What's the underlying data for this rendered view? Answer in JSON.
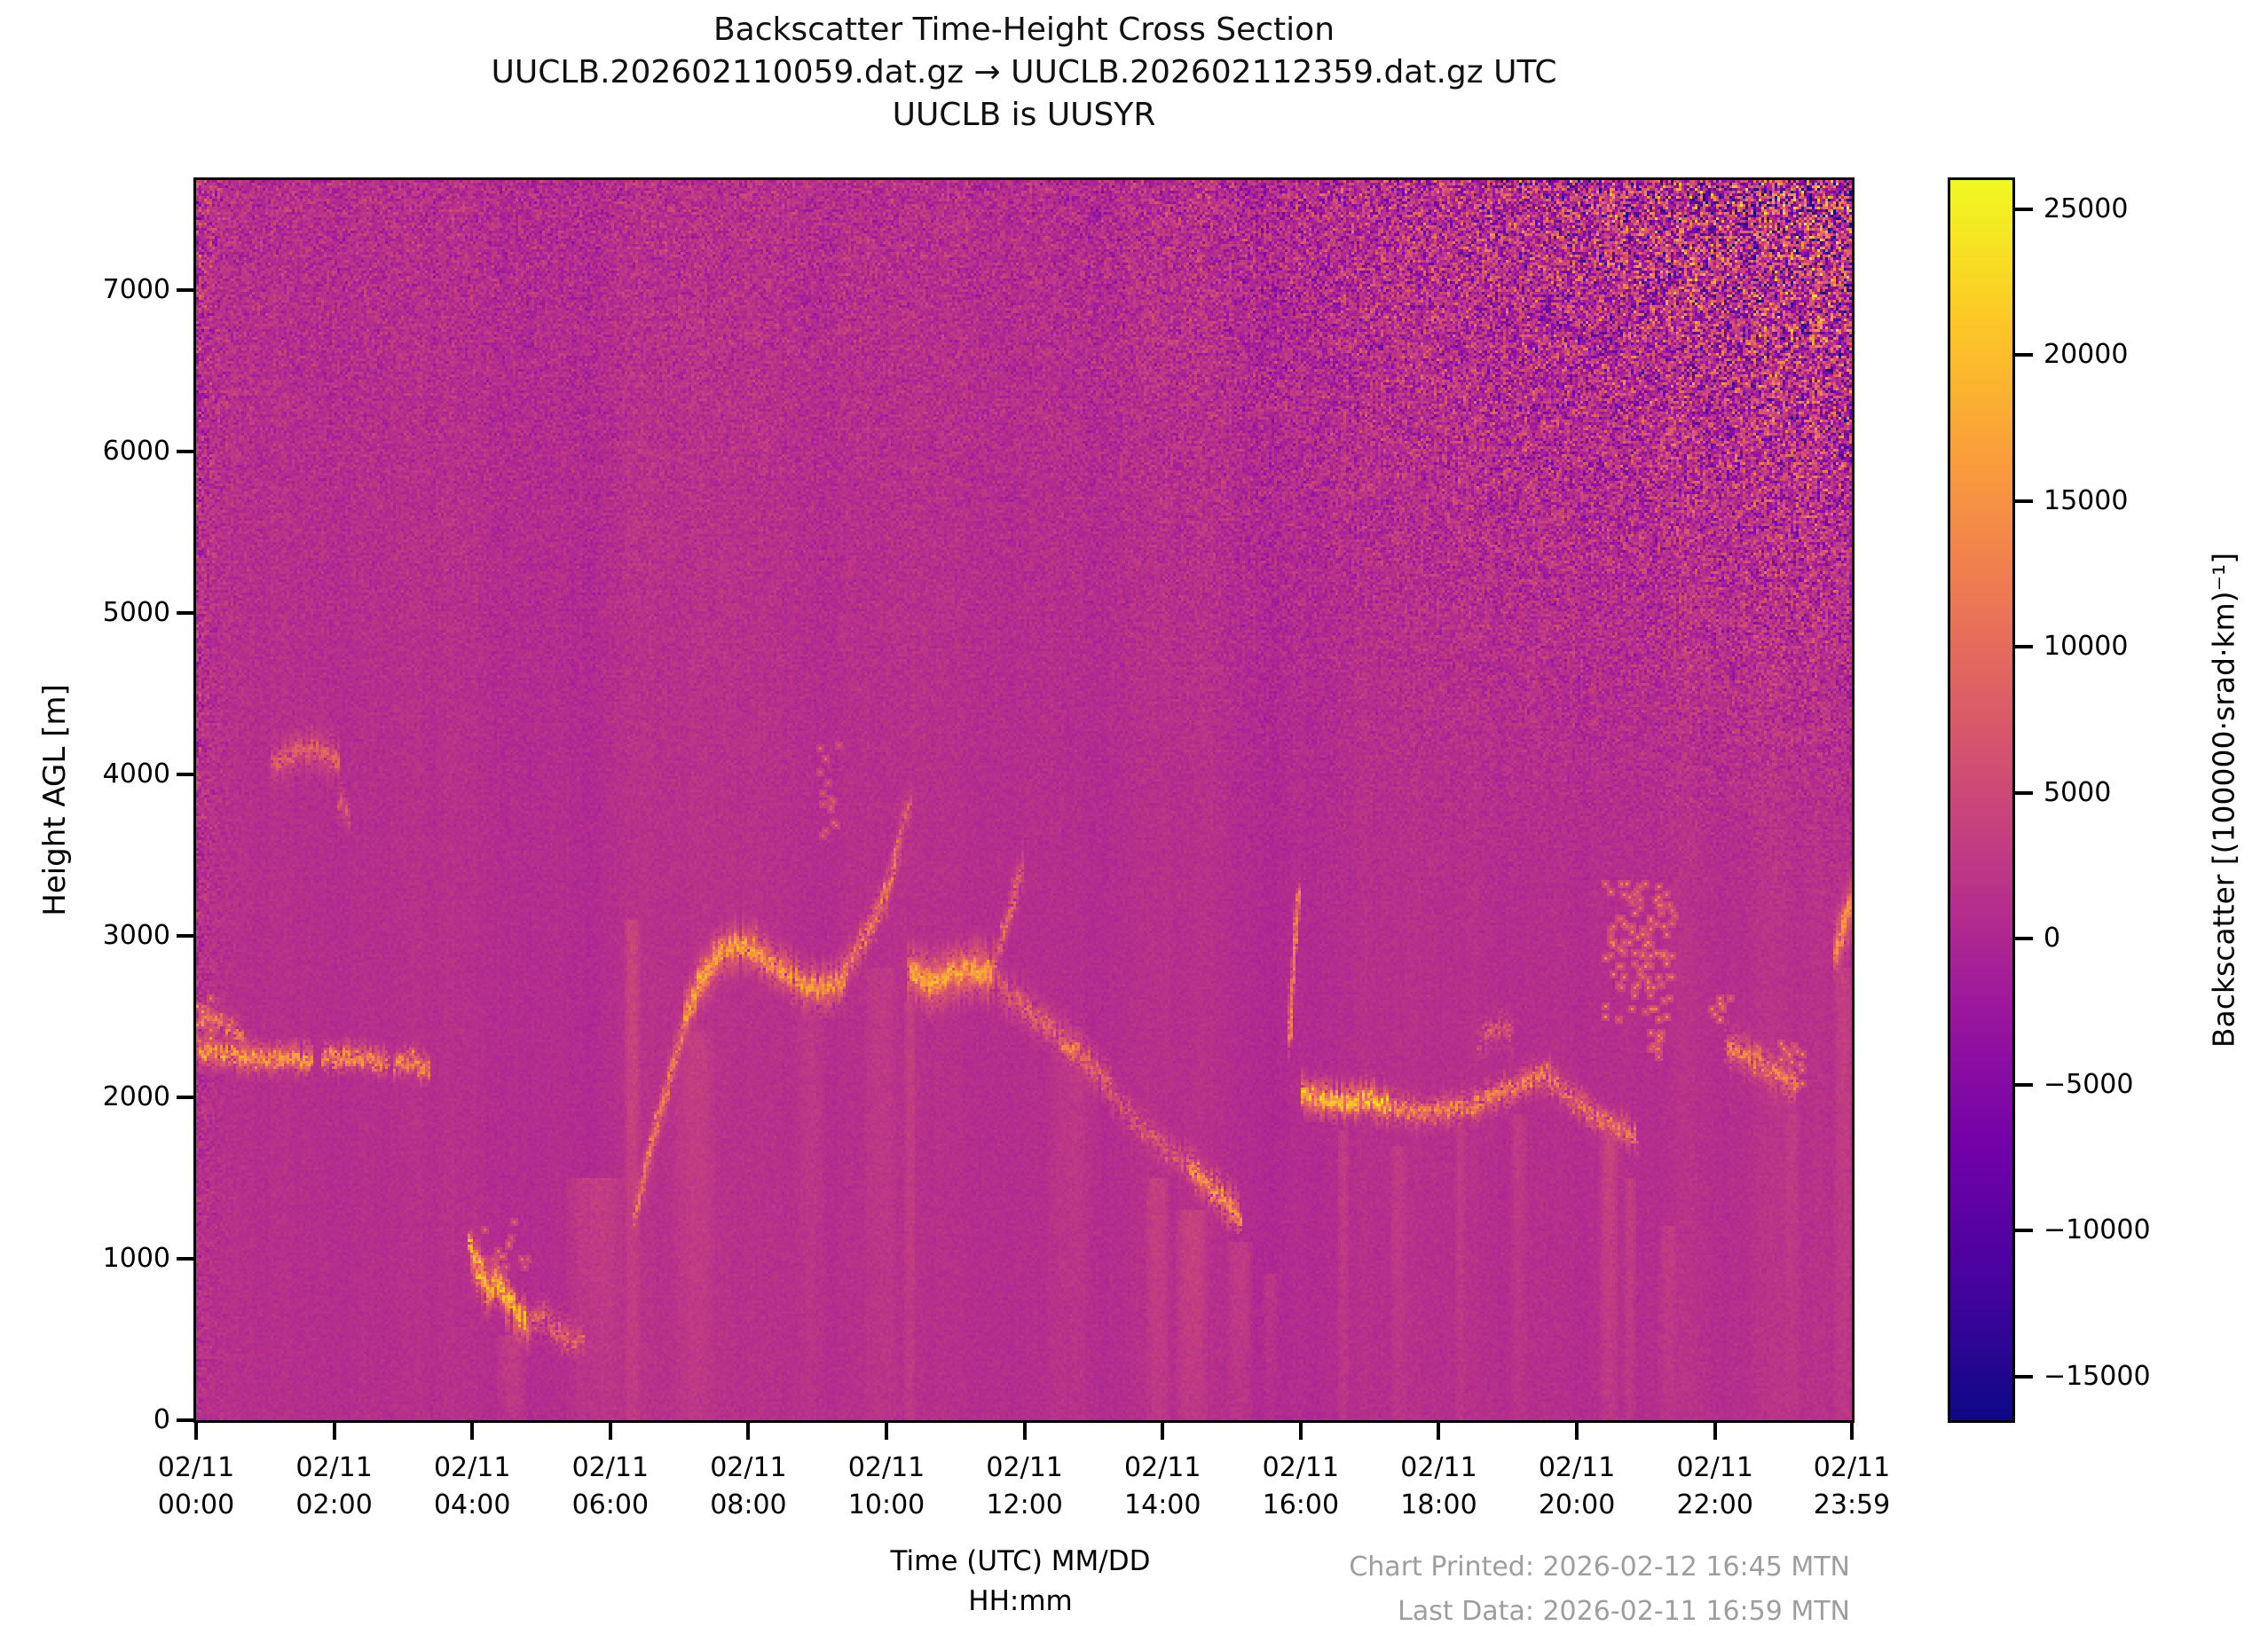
{
  "title": {
    "line1": "Backscatter Time-Height Cross Section",
    "line2": "UUCLB.202602110059.dat.gz → UUCLB.202602112359.dat.gz UTC",
    "line3": "UUCLB is UUSYR"
  },
  "axes": {
    "y_label": "Height AGL [m]",
    "x_label_line1": "Time (UTC) MM/DD",
    "x_label_line2": "HH:mm",
    "y_ticks": [
      {
        "label": "0",
        "m": 0
      },
      {
        "label": "1000",
        "m": 1000
      },
      {
        "label": "2000",
        "m": 2000
      },
      {
        "label": "3000",
        "m": 3000
      },
      {
        "label": "4000",
        "m": 4000
      },
      {
        "label": "5000",
        "m": 5000
      },
      {
        "label": "6000",
        "m": 6000
      },
      {
        "label": "7000",
        "m": 7000
      }
    ],
    "x_ticks": [
      {
        "date": "02/11",
        "time": "00:00",
        "t": 0
      },
      {
        "date": "02/11",
        "time": "02:00",
        "t": 2
      },
      {
        "date": "02/11",
        "time": "04:00",
        "t": 4
      },
      {
        "date": "02/11",
        "time": "06:00",
        "t": 6
      },
      {
        "date": "02/11",
        "time": "08:00",
        "t": 8
      },
      {
        "date": "02/11",
        "time": "10:00",
        "t": 10
      },
      {
        "date": "02/11",
        "time": "12:00",
        "t": 12
      },
      {
        "date": "02/11",
        "time": "14:00",
        "t": 14
      },
      {
        "date": "02/11",
        "time": "16:00",
        "t": 16
      },
      {
        "date": "02/11",
        "time": "18:00",
        "t": 18
      },
      {
        "date": "02/11",
        "time": "20:00",
        "t": 20
      },
      {
        "date": "02/11",
        "time": "22:00",
        "t": 22
      },
      {
        "date": "02/11",
        "time": "23:59",
        "t": 23.9833
      }
    ]
  },
  "colorbar": {
    "label": "Backscatter [(100000·srad·km)⁻¹]",
    "ticks": [
      {
        "label": "25000",
        "v": 25000
      },
      {
        "label": "20000",
        "v": 20000
      },
      {
        "label": "15000",
        "v": 15000
      },
      {
        "label": "10000",
        "v": 10000
      },
      {
        "label": "5000",
        "v": 5000
      },
      {
        "label": "0",
        "v": 0
      },
      {
        "label": "−5000",
        "v": -5000
      },
      {
        "label": "−10000",
        "v": -10000
      },
      {
        "label": "−15000",
        "v": -15000
      }
    ]
  },
  "footer": {
    "line1": "Chart Printed: 2026-02-12 16:45 MTN",
    "line2": "Last Data: 2026-02-11 16:59 MTN",
    "color": "#9e9e9e"
  },
  "chart_data": {
    "type": "heatmap",
    "title": "Backscatter Time-Height Cross Section",
    "x_range_hours": [
      0,
      23.9833
    ],
    "y_range_m": [
      0,
      7680
    ],
    "value_units": "(100000·srad·km)⁻¹",
    "vmin": -16500,
    "vmax": 26000,
    "background_value": 1200,
    "colormap": {
      "name": "plasma",
      "stops": [
        "#0d0887",
        "#46039f",
        "#7201a8",
        "#9c179e",
        "#bd3786",
        "#d8576b",
        "#ed7953",
        "#fa9e3b",
        "#fdc926",
        "#f0f921"
      ]
    },
    "noise": {
      "sigma0": 450,
      "col_walk": 110,
      "col_decay": 0.93,
      "col_sine": 150,
      "height": {
        "sigma": 1600,
        "start": 2200,
        "span": 5480,
        "pow": 2
      },
      "top_right": {
        "sigma": 10500,
        "t_start": 11.5,
        "t_span": 12.48,
        "t_pow": 1.6,
        "h_start": 2800,
        "h_span": 4880,
        "h_pow": 1.8
      },
      "left_edge": {
        "sigma": 2600,
        "decay": 0.22
      }
    },
    "bands": [
      {
        "pts": [
          [
            0.02,
            2300
          ],
          [
            0.35,
            2280
          ],
          [
            0.7,
            2260
          ],
          [
            1.05,
            2240
          ],
          [
            1.4,
            2260
          ],
          [
            1.65,
            2240
          ]
        ],
        "th": 100,
        "v": 17000,
        "d": 0.75
      },
      {
        "pts": [
          [
            0.05,
            2520
          ],
          [
            0.3,
            2470
          ],
          [
            0.5,
            2430
          ],
          [
            0.68,
            2390
          ]
        ],
        "th": 110,
        "v": 12000,
        "d": 0.45
      },
      {
        "pts": [
          [
            1.8,
            2240
          ],
          [
            2.15,
            2260
          ],
          [
            2.5,
            2240
          ],
          [
            2.75,
            2220
          ]
        ],
        "th": 90,
        "v": 15000,
        "d": 0.7
      },
      {
        "pts": [
          [
            2.85,
            2210
          ],
          [
            3.1,
            2240
          ],
          [
            3.35,
            2170
          ]
        ],
        "th": 90,
        "v": 15000,
        "d": 0.7
      },
      {
        "pts": [
          [
            1.1,
            4060
          ],
          [
            1.35,
            4130
          ],
          [
            1.6,
            4170
          ],
          [
            1.85,
            4150
          ],
          [
            2.05,
            4080
          ]
        ],
        "th": 150,
        "v": 8500,
        "d": 0.5
      },
      {
        "pts": [
          [
            2.05,
            3850
          ],
          [
            2.2,
            3740
          ]
        ],
        "th": 120,
        "v": 7000,
        "d": 0.4
      },
      {
        "pts": [
          [
            3.95,
            1060
          ],
          [
            4.1,
            920
          ],
          [
            4.22,
            800
          ],
          [
            4.35,
            880
          ],
          [
            4.5,
            760
          ],
          [
            4.62,
            680
          ],
          [
            4.78,
            620
          ]
        ],
        "th": 150,
        "v": 20000,
        "d": 0.8,
        "j": 60
      },
      {
        "pts": [
          [
            4.8,
            580
          ],
          [
            5.0,
            660
          ],
          [
            5.2,
            560
          ],
          [
            5.45,
            500
          ],
          [
            5.6,
            520
          ]
        ],
        "th": 130,
        "v": 9500,
        "d": 0.45
      },
      {
        "pts": [
          [
            6.35,
            1300
          ],
          [
            6.6,
            1750
          ],
          [
            6.85,
            2150
          ],
          [
            7.05,
            2450
          ],
          [
            7.3,
            2700
          ],
          [
            7.55,
            2850
          ]
        ],
        "th": 150,
        "v": 12000,
        "d": 0.65
      },
      {
        "pts": [
          [
            7.05,
            2500
          ],
          [
            7.3,
            2750
          ],
          [
            7.55,
            2900
          ],
          [
            7.8,
            2950
          ],
          [
            8.1,
            2920
          ]
        ],
        "th": 170,
        "v": 17000,
        "d": 0.8
      },
      {
        "pts": [
          [
            8.1,
            2900
          ],
          [
            8.45,
            2800
          ],
          [
            8.8,
            2700
          ],
          [
            9.1,
            2680
          ],
          [
            9.35,
            2730
          ]
        ],
        "th": 160,
        "v": 16000,
        "d": 0.75
      },
      {
        "pts": [
          [
            9.35,
            2780
          ],
          [
            9.6,
            2950
          ],
          [
            9.8,
            3100
          ],
          [
            10.0,
            3300
          ],
          [
            10.15,
            3550
          ]
        ],
        "th": 140,
        "v": 12000,
        "d": 0.6
      },
      {
        "pts": [
          [
            10.15,
            3600
          ],
          [
            10.25,
            3750
          ],
          [
            10.35,
            3850
          ]
        ],
        "th": 130,
        "v": 9000,
        "d": 0.5
      },
      {
        "pts": [
          [
            10.3,
            2780
          ],
          [
            10.6,
            2720
          ],
          [
            10.9,
            2760
          ],
          [
            11.2,
            2800
          ],
          [
            11.5,
            2780
          ]
        ],
        "th": 190,
        "v": 18000,
        "d": 0.85
      },
      {
        "pts": [
          [
            11.5,
            2800
          ],
          [
            11.7,
            3050
          ],
          [
            11.85,
            3300
          ],
          [
            11.95,
            3450
          ]
        ],
        "th": 130,
        "v": 10000,
        "d": 0.5
      },
      {
        "pts": [
          [
            11.6,
            2700
          ],
          [
            12.1,
            2520
          ],
          [
            12.5,
            2380
          ],
          [
            12.9,
            2220
          ],
          [
            13.2,
            2100
          ]
        ],
        "th": 150,
        "v": 9000,
        "d": 0.5
      },
      {
        "pts": [
          [
            12.55,
            2340
          ],
          [
            12.75,
            2300
          ]
        ],
        "th": 110,
        "v": 14000,
        "d": 0.7
      },
      {
        "pts": [
          [
            13.2,
            2050
          ],
          [
            13.6,
            1850
          ],
          [
            14.0,
            1700
          ],
          [
            14.3,
            1600
          ]
        ],
        "th": 130,
        "v": 7500,
        "d": 0.4
      },
      {
        "pts": [
          [
            14.35,
            1580
          ],
          [
            14.55,
            1500
          ],
          [
            14.75,
            1430
          ],
          [
            14.95,
            1340
          ],
          [
            15.1,
            1280
          ]
        ],
        "th": 130,
        "v": 16000,
        "d": 0.65,
        "j": 50
      },
      {
        "pts": [
          [
            15.82,
            2350
          ],
          [
            15.86,
            2700
          ],
          [
            15.9,
            3000
          ],
          [
            15.95,
            3250
          ]
        ],
        "th": 120,
        "v": 13000,
        "d": 0.6
      },
      {
        "pts": [
          [
            16.0,
            2030
          ],
          [
            16.35,
            1990
          ],
          [
            16.7,
            1980
          ],
          [
            17.0,
            2000
          ],
          [
            17.25,
            1950
          ]
        ],
        "th": 120,
        "v": 21000,
        "d": 0.9
      },
      {
        "pts": [
          [
            17.25,
            1950
          ],
          [
            17.7,
            1900
          ],
          [
            18.1,
            1930
          ],
          [
            18.5,
            1960
          ],
          [
            18.9,
            2030
          ],
          [
            19.3,
            2120
          ],
          [
            19.6,
            2150
          ]
        ],
        "th": 110,
        "v": 14000,
        "d": 0.6
      },
      {
        "pts": [
          [
            19.6,
            2120
          ],
          [
            19.9,
            2000
          ],
          [
            20.2,
            1900
          ],
          [
            20.5,
            1830
          ],
          [
            20.85,
            1780
          ]
        ],
        "th": 110,
        "v": 12000,
        "d": 0.55
      },
      {
        "pts": [
          [
            18.55,
            2350
          ],
          [
            18.8,
            2450
          ],
          [
            19.05,
            2400
          ]
        ],
        "th": 120,
        "v": 8000,
        "d": 0.35
      },
      {
        "pts": [
          [
            22.15,
            2330
          ],
          [
            22.5,
            2260
          ],
          [
            22.85,
            2160
          ],
          [
            23.15,
            2080
          ]
        ],
        "th": 140,
        "v": 13000,
        "d": 0.55
      },
      {
        "pts": [
          [
            23.7,
            2900
          ],
          [
            23.85,
            3080
          ],
          [
            23.98,
            3230
          ]
        ],
        "th": 220,
        "v": 15000,
        "d": 0.8
      }
    ],
    "dots": [
      {
        "t0": 20.4,
        "t1": 21.4,
        "h0": 2480,
        "h1": 3340,
        "n": 110,
        "v": 11500
      },
      {
        "t0": 21.05,
        "t1": 21.2,
        "h0": 2250,
        "h1": 2420,
        "n": 10,
        "v": 12000
      },
      {
        "t0": 21.95,
        "t1": 22.2,
        "h0": 2480,
        "h1": 2640,
        "n": 9,
        "v": 12500
      },
      {
        "t0": 9.0,
        "t1": 9.3,
        "h0": 3600,
        "h1": 4200,
        "n": 16,
        "v": 8000
      },
      {
        "t0": 0.0,
        "t1": 0.2,
        "h0": 2350,
        "h1": 2620,
        "n": 14,
        "v": 14000
      },
      {
        "t0": 4.1,
        "t1": 4.8,
        "h0": 950,
        "h1": 1250,
        "n": 18,
        "v": 9000
      },
      {
        "t0": 22.5,
        "t1": 23.3,
        "h0": 2050,
        "h1": 2350,
        "n": 26,
        "v": 12000
      }
    ],
    "plumes": [
      {
        "t": 4.55,
        "w": 0.5,
        "h1": 520,
        "amt": 2400
      },
      {
        "t": 5.75,
        "w": 0.9,
        "h1": 1500,
        "amt": 2600
      },
      {
        "t": 6.3,
        "w": 0.25,
        "h1": 3100,
        "amt": 2800
      },
      {
        "t": 7.2,
        "w": 0.7,
        "h1": 2400,
        "amt": 1700
      },
      {
        "t": 8.9,
        "w": 0.5,
        "h1": 2500,
        "amt": 1500
      },
      {
        "t": 9.9,
        "w": 0.5,
        "h1": 2800,
        "amt": 1500
      },
      {
        "t": 10.32,
        "w": 0.18,
        "h1": 2600,
        "amt": 2200
      },
      {
        "t": 12.7,
        "w": 0.8,
        "h1": 2200,
        "amt": 1400
      },
      {
        "t": 13.9,
        "w": 0.35,
        "h1": 1500,
        "amt": 2200
      },
      {
        "t": 14.4,
        "w": 0.5,
        "h1": 1300,
        "amt": 2600
      },
      {
        "t": 15.1,
        "w": 0.4,
        "h1": 1100,
        "amt": 2400
      },
      {
        "t": 15.55,
        "w": 0.25,
        "h1": 900,
        "amt": 2000
      },
      {
        "t": 16.6,
        "w": 0.2,
        "h1": 1800,
        "amt": 2000
      },
      {
        "t": 17.4,
        "w": 0.25,
        "h1": 1700,
        "amt": 1800
      },
      {
        "t": 18.3,
        "w": 0.2,
        "h1": 1800,
        "amt": 1600
      },
      {
        "t": 19.15,
        "w": 0.25,
        "h1": 1900,
        "amt": 1800
      },
      {
        "t": 20.45,
        "w": 0.3,
        "h1": 1850,
        "amt": 3000
      },
      {
        "t": 20.75,
        "w": 0.2,
        "h1": 1500,
        "amt": 2200
      },
      {
        "t": 21.3,
        "w": 0.3,
        "h1": 1200,
        "amt": 1800
      },
      {
        "t": 23.1,
        "w": 0.25,
        "h1": 1900,
        "amt": 1600
      },
      {
        "t": 23.85,
        "w": 0.3,
        "h1": 2800,
        "amt": 2400
      }
    ]
  }
}
